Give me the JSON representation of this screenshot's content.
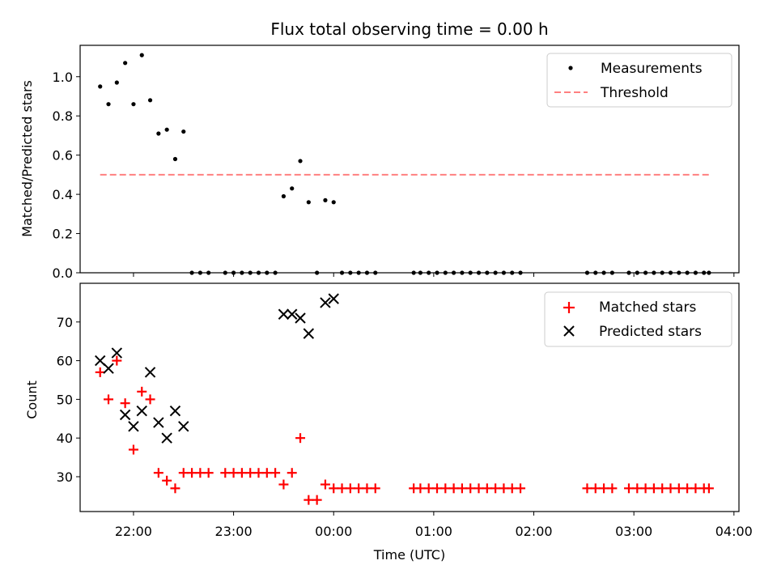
{
  "chart_data": [
    {
      "type": "scatter",
      "title": "Flux total observing time = 0.00 h",
      "ylabel": "Matched/Predicted stars",
      "ylim": [
        0,
        1.16
      ],
      "yticks": [
        0.0,
        0.2,
        0.4,
        0.6,
        0.8,
        1.0
      ],
      "ytick_labels": [
        "0.0",
        "0.2",
        "0.4",
        "0.6",
        "0.8",
        "1.0"
      ],
      "legend_position": "top-right",
      "legend": {
        "measurements": "Measurements",
        "threshold": "Threshold"
      },
      "threshold": {
        "name": "Threshold",
        "value": 0.5,
        "x_start": "21:40",
        "x_end": "03:45",
        "color": "#ff8080"
      },
      "series": [
        {
          "name": "Measurements",
          "color": "#000000",
          "points": [
            [
              "21:40",
              0.95
            ],
            [
              "21:45",
              0.86
            ],
            [
              "21:50",
              0.97
            ],
            [
              "21:55",
              1.07
            ],
            [
              "22:00",
              0.86
            ],
            [
              "22:05",
              1.11
            ],
            [
              "22:10",
              0.88
            ],
            [
              "22:15",
              0.71
            ],
            [
              "22:20",
              0.73
            ],
            [
              "22:25",
              0.58
            ],
            [
              "22:30",
              0.72
            ],
            [
              "22:35",
              0.0
            ],
            [
              "22:40",
              0.0
            ],
            [
              "22:45",
              0.0
            ],
            [
              "22:55",
              0.0
            ],
            [
              "23:00",
              0.0
            ],
            [
              "23:05",
              0.0
            ],
            [
              "23:10",
              0.0
            ],
            [
              "23:15",
              0.0
            ],
            [
              "23:20",
              0.0
            ],
            [
              "23:25",
              0.0
            ],
            [
              "23:30",
              0.39
            ],
            [
              "23:35",
              0.43
            ],
            [
              "23:40",
              0.57
            ],
            [
              "23:45",
              0.36
            ],
            [
              "23:50",
              0.0
            ],
            [
              "23:55",
              0.37
            ],
            [
              "00:00",
              0.36
            ],
            [
              "00:05",
              0.0
            ],
            [
              "00:10",
              0.0
            ],
            [
              "00:15",
              0.0
            ],
            [
              "00:20",
              0.0
            ],
            [
              "00:25",
              0.0
            ],
            [
              "00:48",
              0.0
            ],
            [
              "00:52",
              0.0
            ],
            [
              "00:57",
              0.0
            ],
            [
              "01:02",
              0.0
            ],
            [
              "01:07",
              0.0
            ],
            [
              "01:12",
              0.0
            ],
            [
              "01:17",
              0.0
            ],
            [
              "01:22",
              0.0
            ],
            [
              "01:27",
              0.0
            ],
            [
              "01:32",
              0.0
            ],
            [
              "01:37",
              0.0
            ],
            [
              "01:42",
              0.0
            ],
            [
              "01:47",
              0.0
            ],
            [
              "01:52",
              0.0
            ],
            [
              "02:32",
              0.0
            ],
            [
              "02:37",
              0.0
            ],
            [
              "02:42",
              0.0
            ],
            [
              "02:47",
              0.0
            ],
            [
              "02:57",
              0.0
            ],
            [
              "03:02",
              0.0
            ],
            [
              "03:07",
              0.0
            ],
            [
              "03:12",
              0.0
            ],
            [
              "03:17",
              0.0
            ],
            [
              "03:22",
              0.0
            ],
            [
              "03:27",
              0.0
            ],
            [
              "03:32",
              0.0
            ],
            [
              "03:37",
              0.0
            ],
            [
              "03:42",
              0.0
            ],
            [
              "03:45",
              0.0
            ]
          ]
        }
      ]
    },
    {
      "type": "scatter",
      "xlabel": "Time (UTC)",
      "ylabel": "Count",
      "ylim": [
        21,
        80
      ],
      "yticks": [
        30,
        40,
        50,
        60,
        70
      ],
      "ytick_labels": [
        "30",
        "40",
        "50",
        "60",
        "70"
      ],
      "xlim": [
        "21:28",
        "04:03"
      ],
      "xticks": [
        "22:00",
        "23:00",
        "00:00",
        "01:00",
        "02:00",
        "03:00",
        "04:00"
      ],
      "xtick_labels": [
        "22:00",
        "23:00",
        "00:00",
        "01:00",
        "02:00",
        "03:00",
        "04:00"
      ],
      "legend_position": "top-right",
      "legend": {
        "matched": "Matched stars",
        "predicted": "Predicted stars"
      },
      "series": [
        {
          "name": "Matched stars",
          "marker": "plus",
          "color": "#ff0000",
          "points": [
            [
              "21:40",
              57
            ],
            [
              "21:45",
              50
            ],
            [
              "21:50",
              60
            ],
            [
              "21:55",
              49
            ],
            [
              "22:00",
              37
            ],
            [
              "22:05",
              52
            ],
            [
              "22:10",
              50
            ],
            [
              "22:15",
              31
            ],
            [
              "22:20",
              29
            ],
            [
              "22:25",
              27
            ],
            [
              "22:30",
              31
            ],
            [
              "22:35",
              31
            ],
            [
              "22:40",
              31
            ],
            [
              "22:45",
              31
            ],
            [
              "22:55",
              31
            ],
            [
              "23:00",
              31
            ],
            [
              "23:05",
              31
            ],
            [
              "23:10",
              31
            ],
            [
              "23:15",
              31
            ],
            [
              "23:20",
              31
            ],
            [
              "23:25",
              31
            ],
            [
              "23:30",
              28
            ],
            [
              "23:35",
              31
            ],
            [
              "23:40",
              40
            ],
            [
              "23:45",
              24
            ],
            [
              "23:50",
              24
            ],
            [
              "23:55",
              28
            ],
            [
              "00:00",
              27
            ],
            [
              "00:05",
              27
            ],
            [
              "00:10",
              27
            ],
            [
              "00:15",
              27
            ],
            [
              "00:20",
              27
            ],
            [
              "00:25",
              27
            ],
            [
              "00:48",
              27
            ],
            [
              "00:52",
              27
            ],
            [
              "00:57",
              27
            ],
            [
              "01:02",
              27
            ],
            [
              "01:07",
              27
            ],
            [
              "01:12",
              27
            ],
            [
              "01:17",
              27
            ],
            [
              "01:22",
              27
            ],
            [
              "01:27",
              27
            ],
            [
              "01:32",
              27
            ],
            [
              "01:37",
              27
            ],
            [
              "01:42",
              27
            ],
            [
              "01:47",
              27
            ],
            [
              "01:52",
              27
            ],
            [
              "02:32",
              27
            ],
            [
              "02:37",
              27
            ],
            [
              "02:42",
              27
            ],
            [
              "02:47",
              27
            ],
            [
              "02:57",
              27
            ],
            [
              "03:02",
              27
            ],
            [
              "03:07",
              27
            ],
            [
              "03:12",
              27
            ],
            [
              "03:17",
              27
            ],
            [
              "03:22",
              27
            ],
            [
              "03:27",
              27
            ],
            [
              "03:32",
              27
            ],
            [
              "03:37",
              27
            ],
            [
              "03:42",
              27
            ],
            [
              "03:45",
              27
            ]
          ]
        },
        {
          "name": "Predicted stars",
          "marker": "x",
          "color": "#000000",
          "points": [
            [
              "21:40",
              60
            ],
            [
              "21:45",
              58
            ],
            [
              "21:50",
              62
            ],
            [
              "21:55",
              46
            ],
            [
              "22:00",
              43
            ],
            [
              "22:05",
              47
            ],
            [
              "22:10",
              57
            ],
            [
              "22:15",
              44
            ],
            [
              "22:20",
              40
            ],
            [
              "22:25",
              47
            ],
            [
              "22:30",
              43
            ],
            [
              "23:30",
              72
            ],
            [
              "23:35",
              72
            ],
            [
              "23:40",
              71
            ],
            [
              "23:45",
              67
            ],
            [
              "23:55",
              75
            ],
            [
              "00:00",
              76
            ]
          ]
        }
      ]
    }
  ]
}
